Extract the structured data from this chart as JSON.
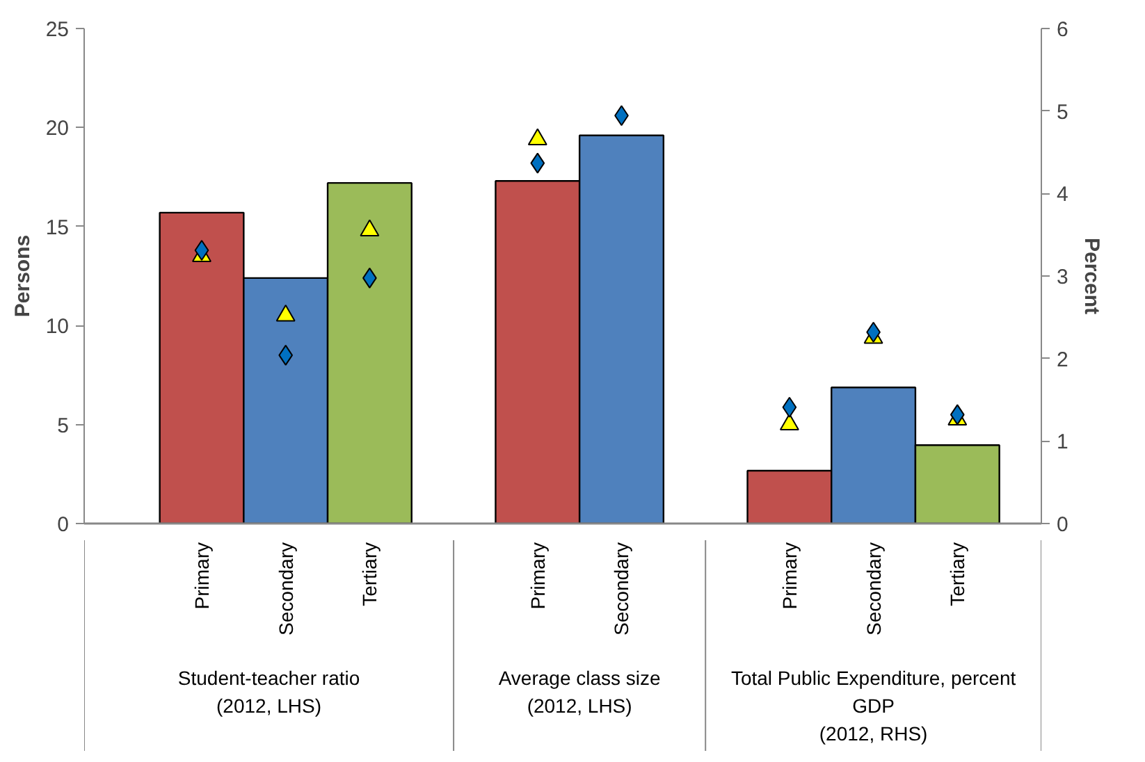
{
  "chart_data": {
    "type": "bar",
    "categories": [
      "Primary",
      "Secondary",
      "Tertiary",
      null,
      "Primary",
      "Secondary",
      null,
      "Primary",
      "Secondary",
      "Tertiary"
    ],
    "series": [
      {
        "colors": [
          "#c0504d",
          "#4f81bd",
          "#9bbb59",
          null,
          "#c0504d",
          "#4f81bd",
          null,
          null,
          null,
          null
        ],
        "values": [
          15.7,
          12.4,
          17.2,
          null,
          17.3,
          19.6,
          null,
          null,
          null,
          null
        ]
      },
      {
        "axis": "y2",
        "colors": [
          null,
          null,
          null,
          null,
          null,
          null,
          null,
          "#c0504d",
          "#4f81bd",
          "#9bbb59"
        ],
        "values": [
          null,
          null,
          null,
          null,
          null,
          null,
          null,
          0.64,
          1.65,
          0.95
        ]
      },
      {
        "type": "scatter",
        "marker": "triangle",
        "color": "#ffff00",
        "values": [
          13.5,
          10.5,
          14.8,
          null,
          19.4,
          null,
          null,
          null,
          null,
          null
        ]
      },
      {
        "type": "scatter",
        "marker": "triangle",
        "axis": "y2",
        "color": "#ffff00",
        "values": [
          null,
          null,
          null,
          null,
          null,
          null,
          null,
          1.2,
          2.25,
          1.26
        ]
      },
      {
        "type": "scatter",
        "marker": "diamond",
        "color": "#0070c0",
        "values": [
          13.8,
          8.5,
          12.4,
          null,
          18.2,
          20.6,
          null,
          null,
          null,
          null
        ]
      },
      {
        "type": "scatter",
        "marker": "diamond",
        "axis": "y2",
        "color": "#0070c0",
        "values": [
          null,
          null,
          null,
          null,
          null,
          null,
          null,
          1.41,
          2.32,
          1.32
        ]
      }
    ],
    "ylabel": "Persons",
    "y2label": "Percent",
    "ylim": [
      0,
      25
    ],
    "yticks": [
      0,
      5,
      10,
      15,
      20,
      25
    ],
    "y2lim": [
      0,
      6
    ],
    "y2ticks": [
      0,
      1,
      2,
      3,
      4,
      5,
      6
    ],
    "annotations": [
      "Student-teacher ratio\n(2012, LHS)",
      "Average class size\n(2012, LHS)",
      "Total Public Expenditure, percent\nGDP\n(2012, RHS)"
    ]
  }
}
